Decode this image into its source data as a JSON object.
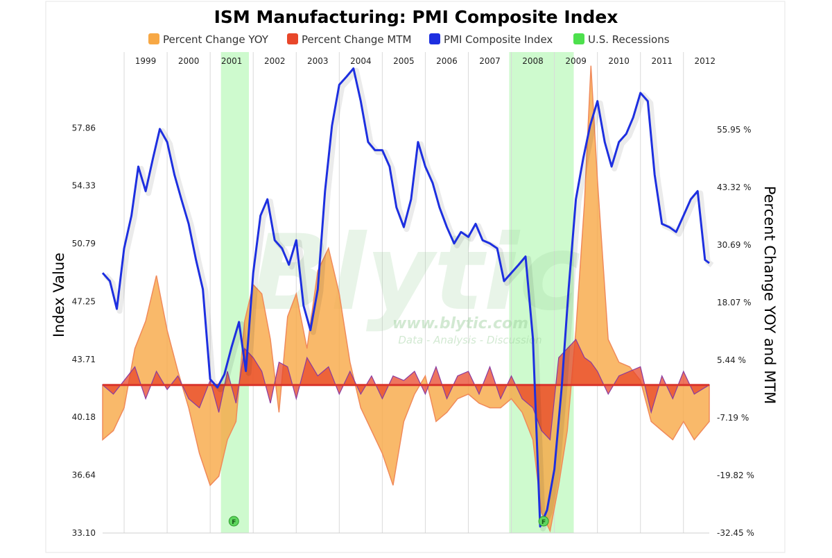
{
  "colors": {
    "yoy": "#f7a845",
    "mtm": "#e8472a",
    "pmi": "#1d2fe0",
    "recession": "#7ef27e",
    "grid": "#d9d9d9",
    "bg": "#ffffff",
    "watermark": "#9ccf9c"
  },
  "watermark": {
    "logo": "Blytic",
    "url": "www.blytic.com",
    "tagline": "Data - Analysis - Discussion"
  },
  "chart_data": {
    "type": "line",
    "title": "ISM Manufacturing: PMI Composite Index",
    "ylabel": "Index Value",
    "y2label": "Percent Change YOY and MTM",
    "legend_position": "top",
    "grid": true,
    "x_range": [
      1998.5,
      2012.6
    ],
    "ylim": [
      33.1,
      62.5
    ],
    "y2lim": [
      -32.45,
      73.0
    ],
    "y_ticks": [
      "33.10",
      "36.64",
      "40.18",
      "43.71",
      "47.25",
      "50.79",
      "54.33",
      "57.86"
    ],
    "y2_ticks": [
      "-32.45 %",
      "-19.82 %",
      "-7.19 %",
      "5.44 %",
      "18.07 %",
      "30.69 %",
      "43.32 %",
      "55.95 %"
    ],
    "year_labels": [
      "1999",
      "2000",
      "2001",
      "2002",
      "2003",
      "2004",
      "2005",
      "2006",
      "2007",
      "2008",
      "2009",
      "2010",
      "2011",
      "2012"
    ],
    "recessions": [
      [
        2001.25,
        2001.9
      ],
      [
        2007.95,
        2009.45
      ]
    ],
    "recession_marker": "F",
    "series": [
      {
        "name": "Percent Change YOY",
        "axis": "right",
        "x": [
          1998.5,
          1998.75,
          1999.0,
          1999.25,
          1999.5,
          1999.75,
          2000.0,
          2000.25,
          2000.5,
          2000.75,
          2001.0,
          2001.2,
          2001.4,
          2001.6,
          2001.8,
          2002.0,
          2002.2,
          2002.4,
          2002.6,
          2002.8,
          2003.0,
          2003.25,
          2003.5,
          2003.75,
          2004.0,
          2004.25,
          2004.5,
          2004.75,
          2005.0,
          2005.25,
          2005.5,
          2005.75,
          2006.0,
          2006.25,
          2006.5,
          2006.75,
          2007.0,
          2007.25,
          2007.5,
          2007.75,
          2008.0,
          2008.25,
          2008.5,
          2008.7,
          2008.9,
          2009.1,
          2009.3,
          2009.5,
          2009.7,
          2009.85,
          2010.0,
          2010.25,
          2010.5,
          2010.75,
          2011.0,
          2011.25,
          2011.5,
          2011.75,
          2012.0,
          2012.25,
          2012.6
        ],
        "values": [
          -12,
          -10,
          -5,
          8,
          14,
          24,
          12,
          3,
          -5,
          -15,
          -22,
          -20,
          -12,
          -8,
          14,
          22,
          20,
          10,
          -6,
          15,
          20,
          8,
          25,
          30,
          20,
          5,
          -5,
          -10,
          -15,
          -22,
          -8,
          -2,
          2,
          -8,
          -6,
          -3,
          -2,
          -4,
          -5,
          -5,
          -3,
          -6,
          -12,
          -28,
          -32,
          -22,
          -10,
          12,
          40,
          70,
          45,
          10,
          5,
          4,
          1,
          -8,
          -10,
          -12,
          -8,
          -12,
          -8
        ]
      },
      {
        "name": "Percent Change MTM",
        "axis": "right",
        "x": [
          1998.5,
          1998.75,
          1999.0,
          1999.25,
          1999.5,
          1999.75,
          2000.0,
          2000.25,
          2000.5,
          2000.75,
          2001.0,
          2001.2,
          2001.4,
          2001.6,
          2001.8,
          2002.0,
          2002.2,
          2002.4,
          2002.6,
          2002.8,
          2003.0,
          2003.25,
          2003.5,
          2003.75,
          2004.0,
          2004.25,
          2004.5,
          2004.75,
          2005.0,
          2005.25,
          2005.5,
          2005.75,
          2006.0,
          2006.25,
          2006.5,
          2006.75,
          2007.0,
          2007.25,
          2007.5,
          2007.75,
          2008.0,
          2008.25,
          2008.5,
          2008.7,
          2008.9,
          2009.1,
          2009.3,
          2009.5,
          2009.7,
          2009.85,
          2010.0,
          2010.25,
          2010.5,
          2010.75,
          2011.0,
          2011.25,
          2011.5,
          2011.75,
          2012.0,
          2012.25,
          2012.6
        ],
        "values": [
          0,
          -2,
          1,
          4,
          -3,
          3,
          -1,
          2,
          -3,
          -5,
          1,
          -6,
          3,
          -4,
          8,
          6,
          3,
          -4,
          5,
          4,
          -3,
          6,
          2,
          4,
          -2,
          3,
          -2,
          2,
          -3,
          2,
          1,
          3,
          -2,
          4,
          -3,
          2,
          3,
          -2,
          4,
          -3,
          2,
          -3,
          -5,
          -10,
          -12,
          6,
          8,
          10,
          6,
          5,
          3,
          -2,
          2,
          3,
          4,
          -6,
          2,
          -3,
          3,
          -2,
          0
        ]
      },
      {
        "name": "PMI Composite Index",
        "axis": "left",
        "x": [
          1998.5,
          1998.67,
          1998.83,
          1999.0,
          1999.17,
          1999.33,
          1999.5,
          1999.67,
          1999.83,
          2000.0,
          2000.17,
          2000.33,
          2000.5,
          2000.67,
          2000.83,
          2001.0,
          2001.17,
          2001.33,
          2001.5,
          2001.67,
          2001.83,
          2002.0,
          2002.17,
          2002.33,
          2002.5,
          2002.67,
          2002.83,
          2003.0,
          2003.17,
          2003.33,
          2003.5,
          2003.67,
          2003.83,
          2004.0,
          2004.17,
          2004.33,
          2004.5,
          2004.67,
          2004.83,
          2005.0,
          2005.17,
          2005.33,
          2005.5,
          2005.67,
          2005.83,
          2006.0,
          2006.17,
          2006.33,
          2006.5,
          2006.67,
          2006.83,
          2007.0,
          2007.17,
          2007.33,
          2007.5,
          2007.67,
          2007.83,
          2008.0,
          2008.17,
          2008.33,
          2008.5,
          2008.67,
          2008.83,
          2009.0,
          2009.17,
          2009.33,
          2009.5,
          2009.67,
          2009.83,
          2010.0,
          2010.17,
          2010.33,
          2010.5,
          2010.67,
          2010.83,
          2011.0,
          2011.17,
          2011.33,
          2011.5,
          2011.67,
          2011.83,
          2012.0,
          2012.17,
          2012.33,
          2012.5,
          2012.6
        ],
        "values": [
          49.0,
          48.5,
          46.8,
          50.5,
          52.5,
          55.5,
          54.0,
          56.0,
          57.8,
          57.0,
          55.0,
          53.5,
          52.0,
          49.8,
          48.0,
          42.5,
          42.0,
          42.8,
          44.5,
          46.0,
          43.0,
          49.0,
          52.5,
          53.5,
          51.0,
          50.5,
          49.5,
          51.0,
          47.0,
          45.5,
          48.0,
          54.0,
          58.0,
          60.5,
          61.0,
          61.5,
          59.5,
          57.0,
          56.5,
          56.5,
          55.5,
          53.0,
          51.8,
          53.5,
          57.0,
          55.5,
          54.5,
          53.0,
          51.8,
          50.8,
          51.5,
          51.2,
          52.0,
          51.0,
          50.8,
          50.5,
          48.5,
          49.0,
          49.5,
          50.0,
          45.0,
          33.5,
          34.5,
          37.0,
          42.0,
          48.0,
          53.5,
          56.0,
          58.0,
          59.5,
          57.0,
          55.5,
          57.0,
          57.5,
          58.5,
          60.0,
          59.5,
          55.0,
          52.0,
          51.8,
          51.5,
          52.5,
          53.5,
          54.0,
          49.8,
          49.6
        ]
      },
      {
        "name": "U.S. Recessions"
      }
    ]
  }
}
